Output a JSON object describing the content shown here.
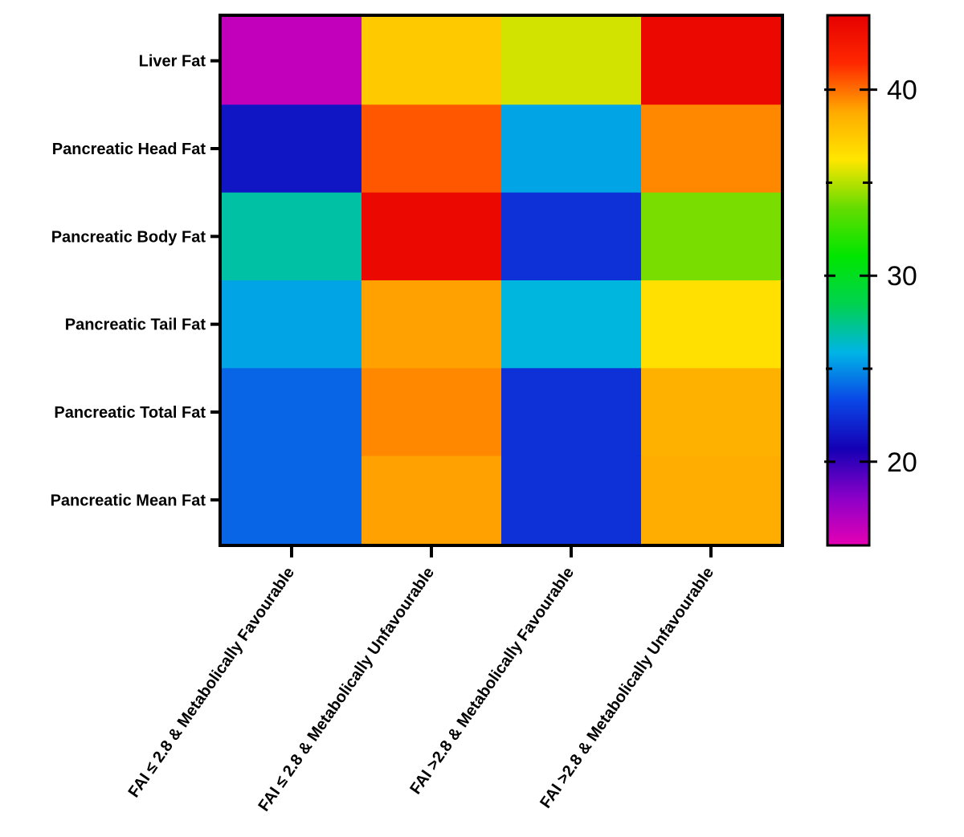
{
  "chart_data": {
    "type": "heatmap",
    "title": "",
    "xlabel": "",
    "ylabel": "",
    "rows": [
      "Liver Fat",
      "Pancreatic Head Fat",
      "Pancreatic Body Fat",
      "Pancreatic Tail Fat",
      "Pancreatic Total Fat",
      "Pancreatic Mean Fat"
    ],
    "columns": [
      "FAI ≤ 2.8 & Metabolically Favourable",
      "FAI ≤ 2.8 & Metabolically Unfavourable",
      "FAI >2.8 & Metabolically Favourable",
      "FAI >2.8 & Metabolically Unfavourable"
    ],
    "values": [
      [
        16.5,
        37.5,
        35.5,
        43.5
      ],
      [
        21.5,
        40.5,
        25.5,
        39.5
      ],
      [
        27.0,
        43.5,
        22.5,
        34.0
      ],
      [
        25.5,
        39.0,
        26.0,
        36.5
      ],
      [
        24.0,
        39.5,
        22.5,
        38.5
      ],
      [
        24.0,
        39.0,
        22.5,
        38.7
      ]
    ],
    "colorbar": {
      "min": 15.5,
      "max": 44.0,
      "ticks": [
        20,
        30,
        40
      ],
      "tick_labels": [
        "20",
        "30",
        "40"
      ],
      "minor_ticks": [
        25,
        35
      ],
      "colors": [
        "#e600b4",
        "#8a00c8",
        "#1400b4",
        "#0a46e6",
        "#00b4e6",
        "#00d250",
        "#00e600",
        "#64dc00",
        "#ffe600",
        "#ffaa00",
        "#ff2800",
        "#e60000"
      ]
    }
  }
}
